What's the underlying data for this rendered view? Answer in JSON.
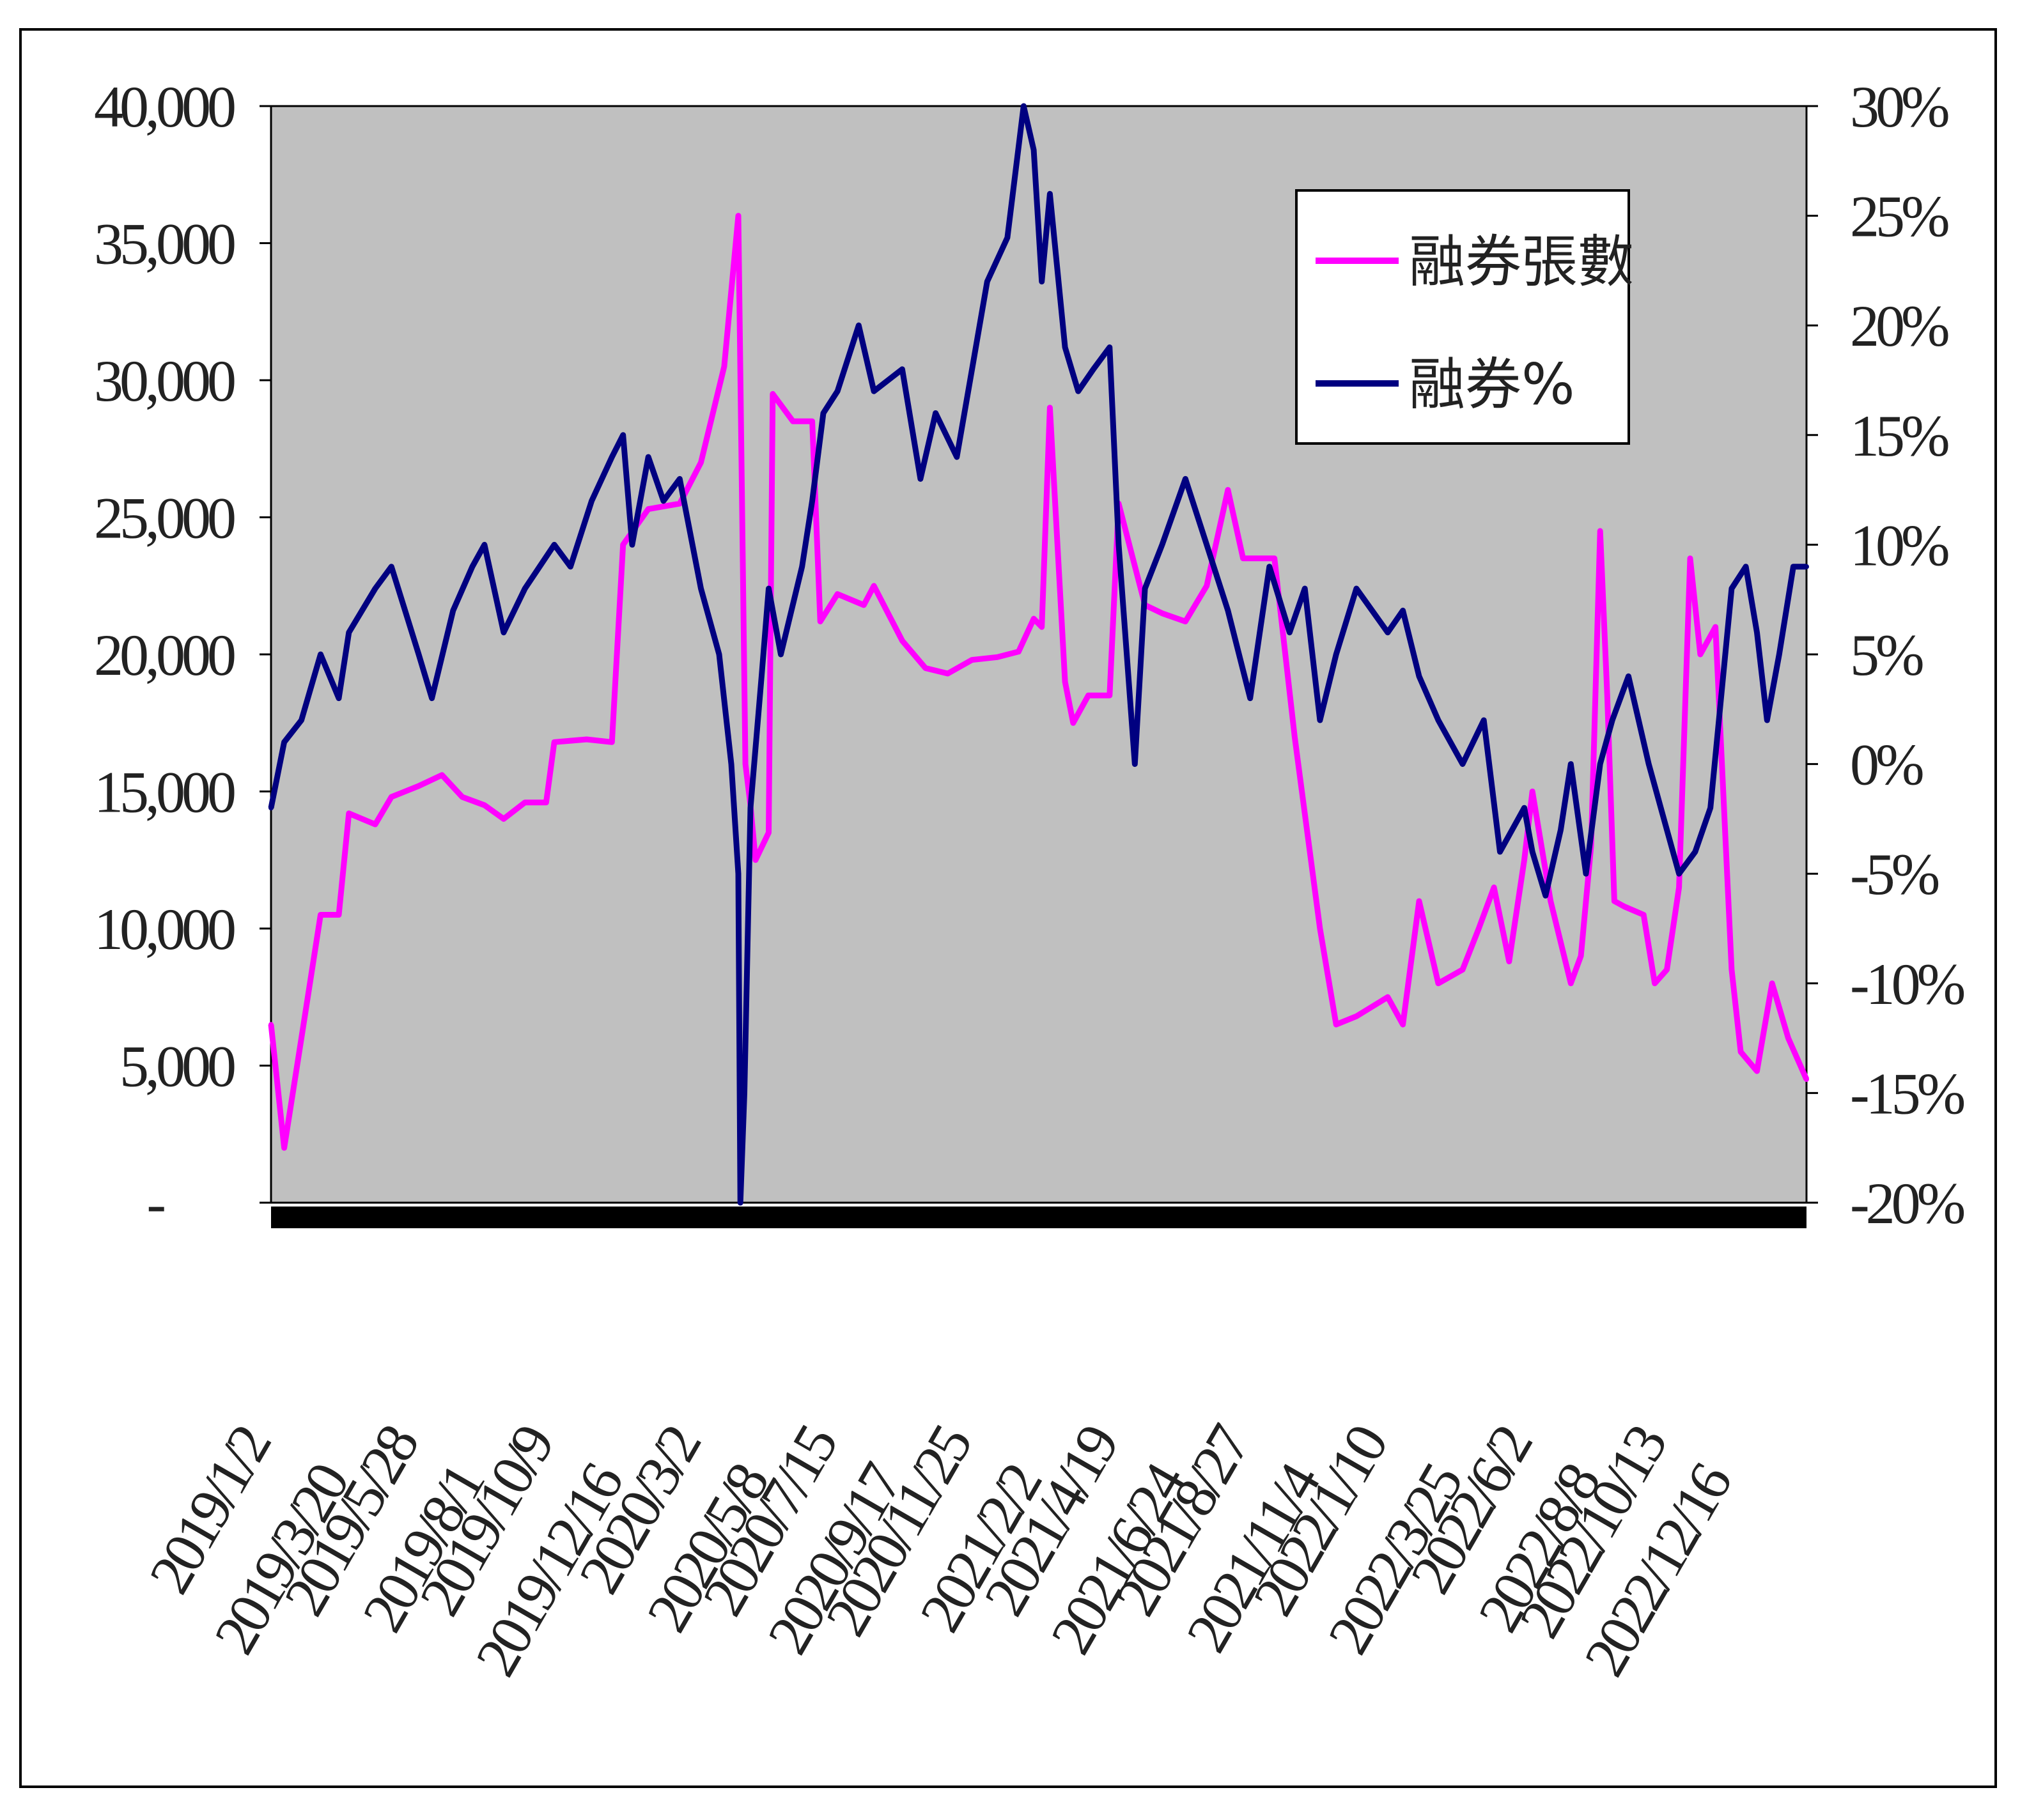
{
  "chart_data": {
    "type": "line",
    "title": "",
    "xlabel": "",
    "y_left_ticks": [
      "-",
      "5,000",
      "10,000",
      "15,000",
      "20,000",
      "25,000",
      "30,000",
      "35,000",
      "40,000"
    ],
    "y_right_ticks": [
      "-20%",
      "-15%",
      "-10%",
      "-5%",
      "0%",
      "5%",
      "10%",
      "15%",
      "20%",
      "25%",
      "30%"
    ],
    "ylim_left": [
      0,
      40000
    ],
    "ylim_right": [
      -20,
      30
    ],
    "x_tick_labels": [
      "2019/1/2",
      "2019/3/20",
      "2019/5/28",
      "2019/8/1",
      "2019/10/9",
      "2019/12/16",
      "2020/3/2",
      "2020/5/8",
      "2020/7/15",
      "2020/9/17",
      "2020/11/25",
      "2021/2/2",
      "2021/4/19",
      "2021/6/24",
      "2021/8/27",
      "2021/11/4",
      "2022/1/10",
      "2022/3/25",
      "2022/6/2",
      "2022/8/8",
      "2022/10/13",
      "2022/12/16"
    ],
    "legend_position": "top-right",
    "background_color": "#c0c0c0",
    "grid": false,
    "series": [
      {
        "name": "融券張數",
        "axis": "left",
        "color": "#ff00ff",
        "points": [
          [
            "2019/1/2",
            6500
          ],
          [
            "2019/1/15",
            2000
          ],
          [
            "2019/2/1",
            6000
          ],
          [
            "2019/2/20",
            10500
          ],
          [
            "2019/3/10",
            10500
          ],
          [
            "2019/3/20",
            14200
          ],
          [
            "2019/4/15",
            13800
          ],
          [
            "2019/5/1",
            14800
          ],
          [
            "2019/5/28",
            15200
          ],
          [
            "2019/6/20",
            15600
          ],
          [
            "2019/7/10",
            14800
          ],
          [
            "2019/8/1",
            14500
          ],
          [
            "2019/8/20",
            14000
          ],
          [
            "2019/9/10",
            14600
          ],
          [
            "2019/10/1",
            14600
          ],
          [
            "2019/10/9",
            16800
          ],
          [
            "2019/11/10",
            16900
          ],
          [
            "2019/12/5",
            16800
          ],
          [
            "2019/12/16",
            24000
          ],
          [
            "2020/1/10",
            25300
          ],
          [
            "2020/2/10",
            25500
          ],
          [
            "2020/3/2",
            27000
          ],
          [
            "2020/3/25",
            30500
          ],
          [
            "2020/4/8",
            36000
          ],
          [
            "2020/4/15",
            16000
          ],
          [
            "2020/4/20",
            14500
          ],
          [
            "2020/4/25",
            12500
          ],
          [
            "2020/5/8",
            13500
          ],
          [
            "2020/5/12",
            29500
          ],
          [
            "2020/6/1",
            28500
          ],
          [
            "2020/6/20",
            28500
          ],
          [
            "2020/6/28",
            21200
          ],
          [
            "2020/7/15",
            22200
          ],
          [
            "2020/8/10",
            21800
          ],
          [
            "2020/8/20",
            22500
          ],
          [
            "2020/9/17",
            20500
          ],
          [
            "2020/10/10",
            19500
          ],
          [
            "2020/11/1",
            19300
          ],
          [
            "2020/11/25",
            19800
          ],
          [
            "2020/12/20",
            19900
          ],
          [
            "2021/1/10",
            20100
          ],
          [
            "2021/1/25",
            21300
          ],
          [
            "2021/2/2",
            21000
          ],
          [
            "2021/2/10",
            29000
          ],
          [
            "2021/2/25",
            19000
          ],
          [
            "2021/3/5",
            17500
          ],
          [
            "2021/3/20",
            18500
          ],
          [
            "2021/4/10",
            18500
          ],
          [
            "2021/4/19",
            25500
          ],
          [
            "2021/5/15",
            21800
          ],
          [
            "2021/6/1",
            21500
          ],
          [
            "2021/6/24",
            21200
          ],
          [
            "2021/7/15",
            22500
          ],
          [
            "2021/8/5",
            26000
          ],
          [
            "2021/8/20",
            23500
          ],
          [
            "2021/8/27",
            23500
          ],
          [
            "2021/9/20",
            23500
          ],
          [
            "2021/10/10",
            17000
          ],
          [
            "2021/11/4",
            10000
          ],
          [
            "2021/11/20",
            6500
          ],
          [
            "2021/12/10",
            6800
          ],
          [
            "2022/1/10",
            7500
          ],
          [
            "2022/1/25",
            6500
          ],
          [
            "2022/2/10",
            11000
          ],
          [
            "2022/3/1",
            8000
          ],
          [
            "2022/3/25",
            8500
          ],
          [
            "2022/4/10",
            10000
          ],
          [
            "2022/4/25",
            11500
          ],
          [
            "2022/5/10",
            8800
          ],
          [
            "2022/5/25",
            12500
          ],
          [
            "2022/6/2",
            15000
          ],
          [
            "2022/6/20",
            11000
          ],
          [
            "2022/7/10",
            8000
          ],
          [
            "2022/7/20",
            9000
          ],
          [
            "2022/7/30",
            13000
          ],
          [
            "2022/8/8",
            24500
          ],
          [
            "2022/8/15",
            18500
          ],
          [
            "2022/8/22",
            11000
          ],
          [
            "2022/9/1",
            10800
          ],
          [
            "2022/9/20",
            10500
          ],
          [
            "2022/10/1",
            8000
          ],
          [
            "2022/10/13",
            8500
          ],
          [
            "2022/10/25",
            11500
          ],
          [
            "2022/11/5",
            23500
          ],
          [
            "2022/11/15",
            20000
          ],
          [
            "2022/11/30",
            21000
          ],
          [
            "2022/12/16",
            8500
          ],
          [
            "2022/12/25",
            5500
          ],
          [
            "2023/1/10",
            4800
          ],
          [
            "2023/1/25",
            8000
          ],
          [
            "2023/2/10",
            6000
          ],
          [
            "2023/2/28",
            4500
          ]
        ]
      },
      {
        "name": "融券%",
        "axis": "right",
        "color": "#000080",
        "points": [
          [
            "2019/1/2",
            -2
          ],
          [
            "2019/1/15",
            1
          ],
          [
            "2019/2/1",
            2
          ],
          [
            "2019/2/20",
            5
          ],
          [
            "2019/3/10",
            3
          ],
          [
            "2019/3/20",
            6
          ],
          [
            "2019/4/15",
            8
          ],
          [
            "2019/5/1",
            9
          ],
          [
            "2019/5/28",
            5
          ],
          [
            "2019/6/10",
            3
          ],
          [
            "2019/7/1",
            7
          ],
          [
            "2019/7/20",
            9
          ],
          [
            "2019/8/1",
            10
          ],
          [
            "2019/8/20",
            6
          ],
          [
            "2019/9/10",
            8
          ],
          [
            "2019/10/9",
            10
          ],
          [
            "2019/10/25",
            9
          ],
          [
            "2019/11/15",
            12
          ],
          [
            "2019/12/5",
            14
          ],
          [
            "2019/12/16",
            15
          ],
          [
            "2019/12/25",
            10
          ],
          [
            "2020/1/10",
            14
          ],
          [
            "2020/1/25",
            12
          ],
          [
            "2020/2/10",
            13
          ],
          [
            "2020/3/2",
            8
          ],
          [
            "2020/3/20",
            5
          ],
          [
            "2020/4/1",
            0
          ],
          [
            "2020/4/8",
            -5
          ],
          [
            "2020/4/10",
            -20
          ],
          [
            "2020/4/14",
            -15
          ],
          [
            "2020/4/20",
            -2
          ],
          [
            "2020/5/1",
            4
          ],
          [
            "2020/5/8",
            8
          ],
          [
            "2020/5/20",
            5
          ],
          [
            "2020/6/10",
            9
          ],
          [
            "2020/6/20",
            12
          ],
          [
            "2020/7/1",
            16
          ],
          [
            "2020/7/15",
            17
          ],
          [
            "2020/8/5",
            20
          ],
          [
            "2020/8/20",
            17
          ],
          [
            "2020/9/17",
            18
          ],
          [
            "2020/10/5",
            13
          ],
          [
            "2020/10/20",
            16
          ],
          [
            "2020/11/10",
            14
          ],
          [
            "2020/11/25",
            18
          ],
          [
            "2020/12/10",
            22
          ],
          [
            "2020/12/30",
            24
          ],
          [
            "2021/1/15",
            30
          ],
          [
            "2021/1/25",
            28
          ],
          [
            "2021/2/2",
            22
          ],
          [
            "2021/2/10",
            26
          ],
          [
            "2021/2/25",
            19
          ],
          [
            "2021/3/10",
            17
          ],
          [
            "2021/3/25",
            18
          ],
          [
            "2021/4/10",
            19
          ],
          [
            "2021/4/19",
            10
          ],
          [
            "2021/5/5",
            0
          ],
          [
            "2021/5/15",
            8
          ],
          [
            "2021/6/1",
            10
          ],
          [
            "2021/6/24",
            13
          ],
          [
            "2021/7/15",
            10
          ],
          [
            "2021/8/5",
            7
          ],
          [
            "2021/8/27",
            3
          ],
          [
            "2021/9/15",
            9
          ],
          [
            "2021/10/5",
            6
          ],
          [
            "2021/10/20",
            8
          ],
          [
            "2021/11/4",
            2
          ],
          [
            "2021/11/20",
            5
          ],
          [
            "2021/12/10",
            8
          ],
          [
            "2022/1/10",
            6
          ],
          [
            "2022/1/25",
            7
          ],
          [
            "2022/2/10",
            4
          ],
          [
            "2022/3/1",
            2
          ],
          [
            "2022/3/25",
            0
          ],
          [
            "2022/4/15",
            2
          ],
          [
            "2022/5/1",
            -4
          ],
          [
            "2022/5/25",
            -2
          ],
          [
            "2022/6/2",
            -4
          ],
          [
            "2022/6/15",
            -6
          ],
          [
            "2022/6/30",
            -3
          ],
          [
            "2022/7/10",
            0
          ],
          [
            "2022/7/25",
            -5
          ],
          [
            "2022/8/8",
            0
          ],
          [
            "2022/8/20",
            2
          ],
          [
            "2022/9/5",
            4
          ],
          [
            "2022/9/25",
            0
          ],
          [
            "2022/10/13",
            -3
          ],
          [
            "2022/10/25",
            -5
          ],
          [
            "2022/11/10",
            -4
          ],
          [
            "2022/11/25",
            -2
          ],
          [
            "2022/12/16",
            8
          ],
          [
            "2022/12/30",
            9
          ],
          [
            "2023/1/10",
            6
          ],
          [
            "2023/1/20",
            2
          ],
          [
            "2023/2/1",
            5
          ],
          [
            "2023/2/15",
            9
          ],
          [
            "2023/2/28",
            9
          ]
        ]
      }
    ]
  }
}
